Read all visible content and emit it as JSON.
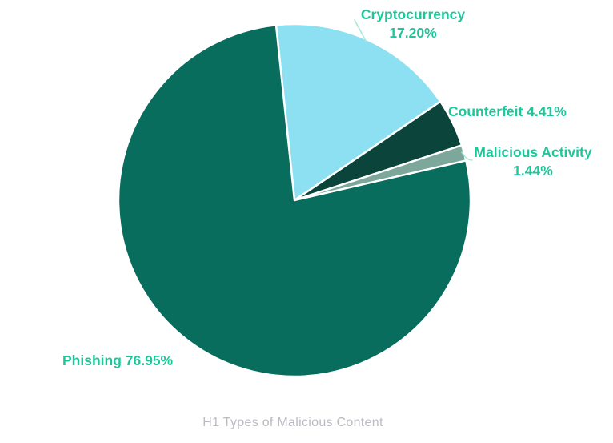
{
  "chart_data": {
    "type": "pie",
    "title": "H1 Types of Malicious Content",
    "direction": "clockwise",
    "start_angle_deg": -6,
    "slices": [
      {
        "label": "Cryptocurrency",
        "value": 17.2,
        "display": "17.20%",
        "color": "#8DE0F1"
      },
      {
        "label": "Counterfeit",
        "value": 4.41,
        "display": "4.41%",
        "color": "#0A443B"
      },
      {
        "label": "Malicious Activity",
        "value": 1.44,
        "display": "1.44%",
        "color": "#7CA79A"
      },
      {
        "label": "Phishing",
        "value": 76.95,
        "display": "76.95%",
        "color": "#086D5D"
      }
    ],
    "slice_border_color": "#FFFFFF",
    "label_color": "#1EC79B",
    "leader_line_color": "#A9E9D9",
    "title_color": "#B9BCC3",
    "background_color": "#FFFFFF",
    "legend": "none"
  }
}
